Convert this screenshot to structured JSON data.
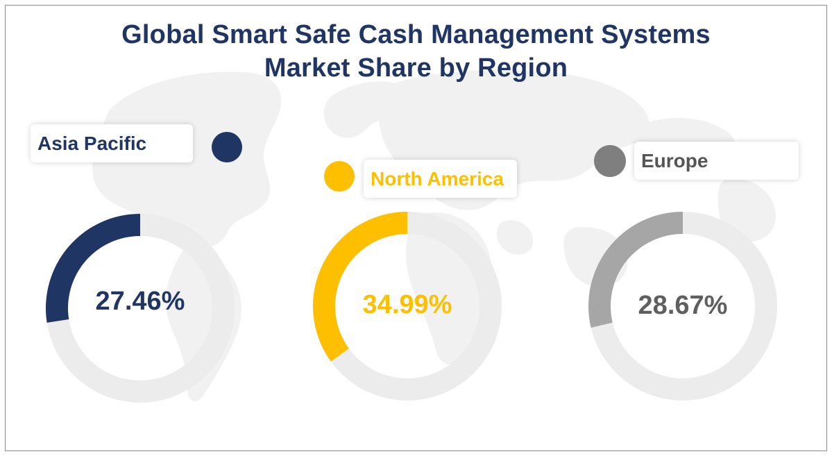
{
  "chart_data": {
    "type": "pie",
    "title": "Global Smart Safe Cash Management Systems Market Share by Region",
    "series": [
      {
        "name": "Asia Pacific",
        "value": 27.46,
        "label": "27.46%",
        "color": "#1f3564"
      },
      {
        "name": "North America",
        "value": 34.99,
        "label": "34.99%",
        "color": "#fdbf00"
      },
      {
        "name": "Europe",
        "value": 28.67,
        "label": "28.67%",
        "color": "#a6a6a6"
      }
    ],
    "track_color": "#ececec",
    "unit": "%"
  },
  "title": {
    "line1": "Global Smart Safe Cash Management Systems",
    "line2": "Market Share by Region"
  },
  "regions": [
    {
      "name": "Asia Pacific",
      "value_label": "27.46%"
    },
    {
      "name": "North America",
      "value_label": "34.99%"
    },
    {
      "name": "Europe",
      "value_label": "28.67%"
    }
  ],
  "colors": {
    "title": "#1f3564",
    "asia_pacific": "#1f3564",
    "north_america": "#fdbf00",
    "europe": "#7f7f7f",
    "map": "#f2f2f2"
  }
}
